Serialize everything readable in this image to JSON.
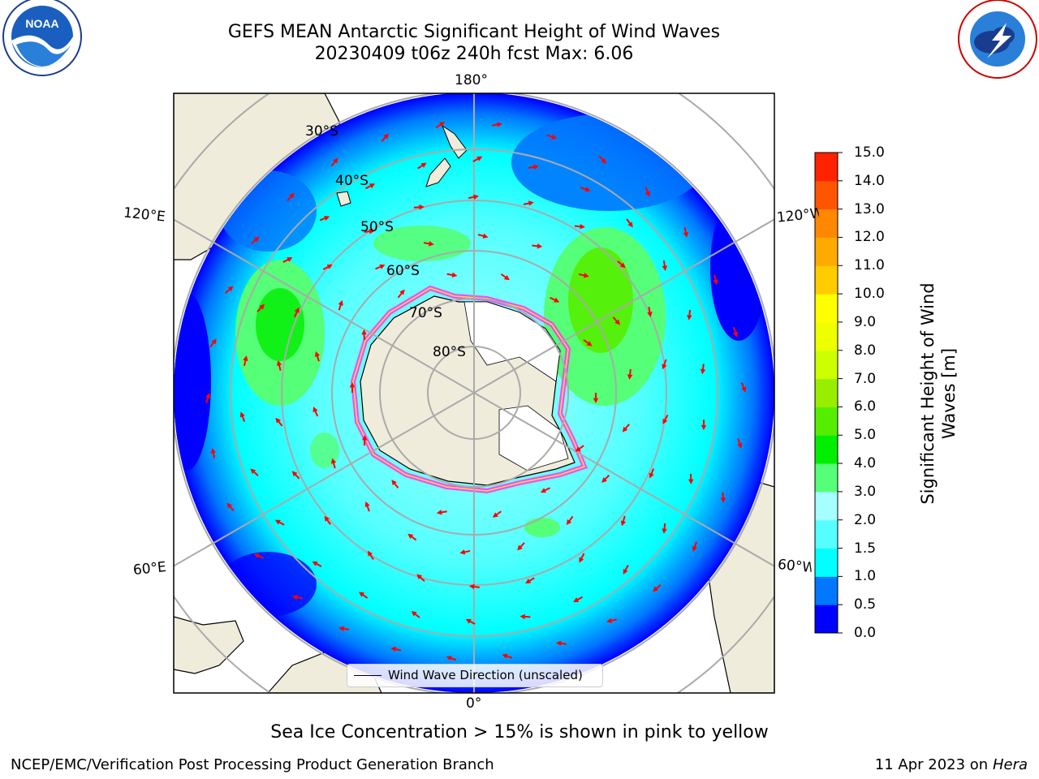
{
  "header": {
    "title_line1": "GEFS MEAN Antarctic Significant Height of Wind Waves",
    "title_line2": "20230409 t06z 240h fcst   Max: 6.06"
  },
  "logos": {
    "noaa_text": "NOAA",
    "nws_text": "NATIONAL WEATHER SERVICE"
  },
  "map": {
    "longitude_labels": {
      "top": "180°",
      "bottom": "0°",
      "left_upper": "120°E",
      "left_lower": "60°E",
      "right_upper": "120°W",
      "right_lower": "60°W"
    },
    "latitude_labels": [
      "30°S",
      "40°S",
      "50°S",
      "60°S",
      "70°S",
      "80°S"
    ],
    "legend_label": "Wind Wave Direction (unscaled)",
    "vector_color": "#ff0000"
  },
  "colorbar": {
    "label": "Significant Height of Wind Waves [m]",
    "ticks": [
      "15.0",
      "14.0",
      "13.0",
      "12.0",
      "11.0",
      "10.0",
      "9.0",
      "8.0",
      "7.0",
      "6.0",
      "5.0",
      "4.0",
      "3.0",
      "2.0",
      "1.5",
      "1.0",
      "0.5",
      "0.0"
    ],
    "colors": [
      "#0000ff",
      "#0077ff",
      "#00ffff",
      "#55ffff",
      "#a6ffff",
      "#55ff77",
      "#00ee00",
      "#55ee00",
      "#99ee00",
      "#ccff00",
      "#eeff00",
      "#ffff00",
      "#ffcc00",
      "#ffaa00",
      "#ff8800",
      "#ff5500",
      "#ff2200"
    ]
  },
  "footer": {
    "caption": "Sea Ice Concentration > 15% is shown in pink to yellow",
    "branch": "NCEP/EMC/Verification Post Processing Product Generation Branch",
    "date": "11 Apr 2023 on",
    "host": "Hera"
  }
}
